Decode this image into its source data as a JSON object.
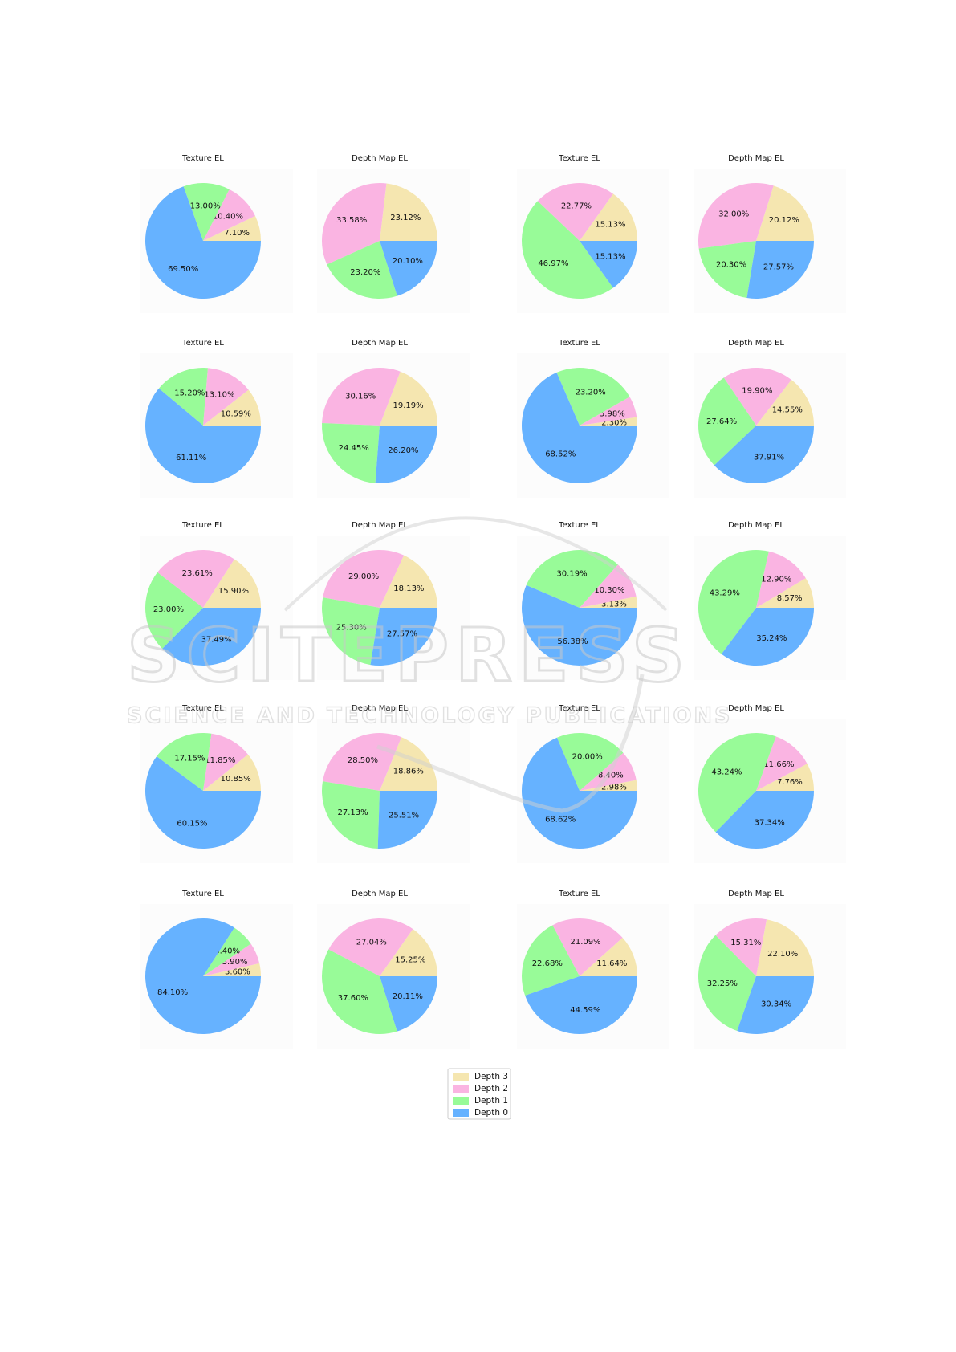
{
  "colors": {
    "Depth 3": "#f5e6b0",
    "Depth 2": "#fab4e2",
    "Depth 1": "#98fb98",
    "Depth 0": "#66b2ff"
  },
  "watermark": {
    "name": "SCITEPRESS",
    "tagline": "SCIENCE AND TECHNOLOGY PUBLICATIONS"
  },
  "legend": {
    "entries": [
      "Depth 3",
      "Depth 2",
      "Depth 1",
      "Depth 0"
    ]
  },
  "chart_data": [
    {
      "type": "pie",
      "title": "Texture EL",
      "categories": [
        "Depth 3",
        "Depth 2",
        "Depth 1",
        "Depth 0"
      ],
      "values": [
        7.1,
        10.4,
        13.0,
        69.5
      ]
    },
    {
      "type": "pie",
      "title": "Depth Map EL",
      "categories": [
        "Depth 3",
        "Depth 2",
        "Depth 1",
        "Depth 0"
      ],
      "values": [
        23.12,
        33.58,
        23.2,
        20.1
      ]
    },
    {
      "type": "pie",
      "title": "Texture EL",
      "categories": [
        "Depth 3",
        "Depth 2",
        "Depth 1",
        "Depth 0"
      ],
      "values": [
        15.13,
        22.77,
        46.97,
        15.13
      ]
    },
    {
      "type": "pie",
      "title": "Depth Map EL",
      "categories": [
        "Depth 3",
        "Depth 2",
        "Depth 1",
        "Depth 0"
      ],
      "values": [
        20.12,
        32.0,
        20.3,
        27.57
      ]
    },
    {
      "type": "pie",
      "title": "Texture EL",
      "categories": [
        "Depth 3",
        "Depth 2",
        "Depth 1",
        "Depth 0"
      ],
      "values": [
        10.59,
        13.1,
        15.2,
        61.11
      ]
    },
    {
      "type": "pie",
      "title": "Depth Map EL",
      "categories": [
        "Depth 3",
        "Depth 2",
        "Depth 1",
        "Depth 0"
      ],
      "values": [
        19.19,
        30.16,
        24.45,
        26.2
      ]
    },
    {
      "type": "pie",
      "title": "Texture EL",
      "categories": [
        "Depth 3",
        "Depth 2",
        "Depth 1",
        "Depth 0"
      ],
      "values": [
        2.3,
        5.98,
        23.2,
        68.52
      ]
    },
    {
      "type": "pie",
      "title": "Depth Map EL",
      "categories": [
        "Depth 3",
        "Depth 2",
        "Depth 1",
        "Depth 0"
      ],
      "values": [
        14.55,
        19.9,
        27.64,
        37.91
      ]
    },
    {
      "type": "pie",
      "title": "Texture EL",
      "categories": [
        "Depth 3",
        "Depth 2",
        "Depth 1",
        "Depth 0"
      ],
      "values": [
        15.9,
        23.61,
        23.0,
        37.49
      ]
    },
    {
      "type": "pie",
      "title": "Depth Map EL",
      "categories": [
        "Depth 3",
        "Depth 2",
        "Depth 1",
        "Depth 0"
      ],
      "values": [
        18.13,
        29.0,
        25.3,
        27.57
      ]
    },
    {
      "type": "pie",
      "title": "Texture EL",
      "categories": [
        "Depth 3",
        "Depth 2",
        "Depth 1",
        "Depth 0"
      ],
      "values": [
        3.13,
        10.3,
        30.19,
        56.38
      ]
    },
    {
      "type": "pie",
      "title": "Depth Map EL",
      "categories": [
        "Depth 3",
        "Depth 2",
        "Depth 1",
        "Depth 0"
      ],
      "values": [
        8.57,
        12.9,
        43.29,
        35.24
      ]
    },
    {
      "type": "pie",
      "title": "Texture EL",
      "categories": [
        "Depth 3",
        "Depth 2",
        "Depth 1",
        "Depth 0"
      ],
      "values": [
        10.85,
        11.85,
        17.15,
        60.15
      ]
    },
    {
      "type": "pie",
      "title": "Depth Map EL",
      "categories": [
        "Depth 3",
        "Depth 2",
        "Depth 1",
        "Depth 0"
      ],
      "values": [
        18.86,
        28.5,
        27.13,
        25.51
      ]
    },
    {
      "type": "pie",
      "title": "Texture EL",
      "categories": [
        "Depth 3",
        "Depth 2",
        "Depth 1",
        "Depth 0"
      ],
      "values": [
        2.98,
        8.4,
        20.0,
        68.62
      ]
    },
    {
      "type": "pie",
      "title": "Depth Map EL",
      "categories": [
        "Depth 3",
        "Depth 2",
        "Depth 1",
        "Depth 0"
      ],
      "values": [
        7.76,
        11.66,
        43.24,
        37.34
      ]
    },
    {
      "type": "pie",
      "title": "Texture EL",
      "categories": [
        "Depth 3",
        "Depth 2",
        "Depth 1",
        "Depth 0"
      ],
      "values": [
        3.6,
        5.9,
        6.4,
        84.1
      ]
    },
    {
      "type": "pie",
      "title": "Depth Map EL",
      "categories": [
        "Depth 3",
        "Depth 2",
        "Depth 1",
        "Depth 0"
      ],
      "values": [
        15.25,
        27.04,
        37.6,
        20.11
      ]
    },
    {
      "type": "pie",
      "title": "Texture EL",
      "categories": [
        "Depth 3",
        "Depth 2",
        "Depth 1",
        "Depth 0"
      ],
      "values": [
        11.64,
        21.09,
        22.68,
        44.59
      ]
    },
    {
      "type": "pie",
      "title": "Depth Map EL",
      "categories": [
        "Depth 3",
        "Depth 2",
        "Depth 1",
        "Depth 0"
      ],
      "values": [
        22.1,
        15.31,
        32.25,
        30.34
      ]
    }
  ]
}
